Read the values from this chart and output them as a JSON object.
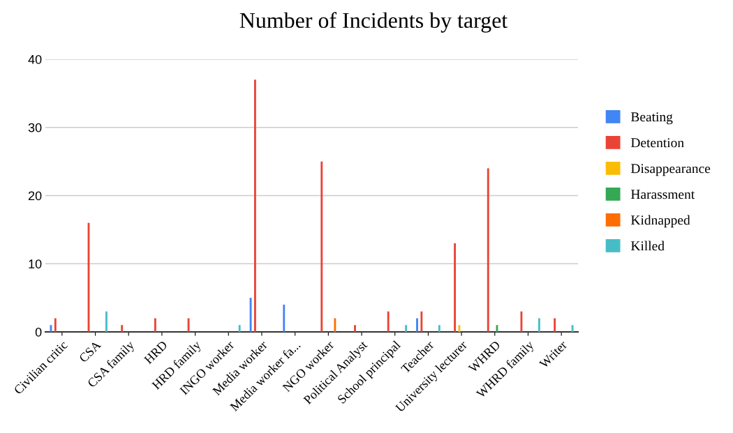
{
  "chart_data": {
    "type": "bar",
    "title": "Number of Incidents by target",
    "categories": [
      "Civilian critic",
      "CSA",
      "CSA family",
      "HRD",
      "HRD family",
      "INGO worker",
      "Media worker",
      "Media worker fa...",
      "NGO worker",
      "Political Analyst",
      "School principal",
      "Teacher",
      "University lecturer",
      "WHRD",
      "WHRD family",
      "Writer"
    ],
    "series": [
      {
        "name": "Beating",
        "color": "#4285f4",
        "values": [
          1,
          0,
          0,
          0,
          0,
          0,
          5,
          4,
          0,
          0,
          0,
          2,
          0,
          0,
          0,
          0
        ]
      },
      {
        "name": "Detention",
        "color": "#ea4335",
        "values": [
          2,
          16,
          1,
          2,
          2,
          0,
          37,
          0,
          25,
          1,
          3,
          3,
          13,
          24,
          3,
          2
        ]
      },
      {
        "name": "Disappearance",
        "color": "#fbbc04",
        "values": [
          0,
          0,
          0,
          0,
          0,
          0,
          0,
          0,
          0,
          0,
          0,
          0,
          1,
          0,
          0,
          0
        ]
      },
      {
        "name": "Harassment",
        "color": "#34a853",
        "values": [
          0,
          0,
          0,
          0,
          0,
          0,
          0,
          0,
          0,
          0,
          0,
          0,
          0,
          1,
          0,
          0
        ]
      },
      {
        "name": "Kidnapped",
        "color": "#ff6d01",
        "values": [
          0,
          0,
          0,
          0,
          0,
          0,
          0,
          0,
          2,
          0,
          0,
          0,
          0,
          0,
          0,
          0
        ]
      },
      {
        "name": "Killed",
        "color": "#46bdc6",
        "values": [
          0,
          3,
          0,
          0,
          0,
          1,
          0,
          0,
          0,
          0,
          1,
          1,
          0,
          0,
          2,
          1
        ]
      }
    ],
    "ylim": [
      0,
      40
    ],
    "yticks": [
      0,
      10,
      20,
      30,
      40
    ],
    "grid": "y",
    "legend": "right"
  }
}
